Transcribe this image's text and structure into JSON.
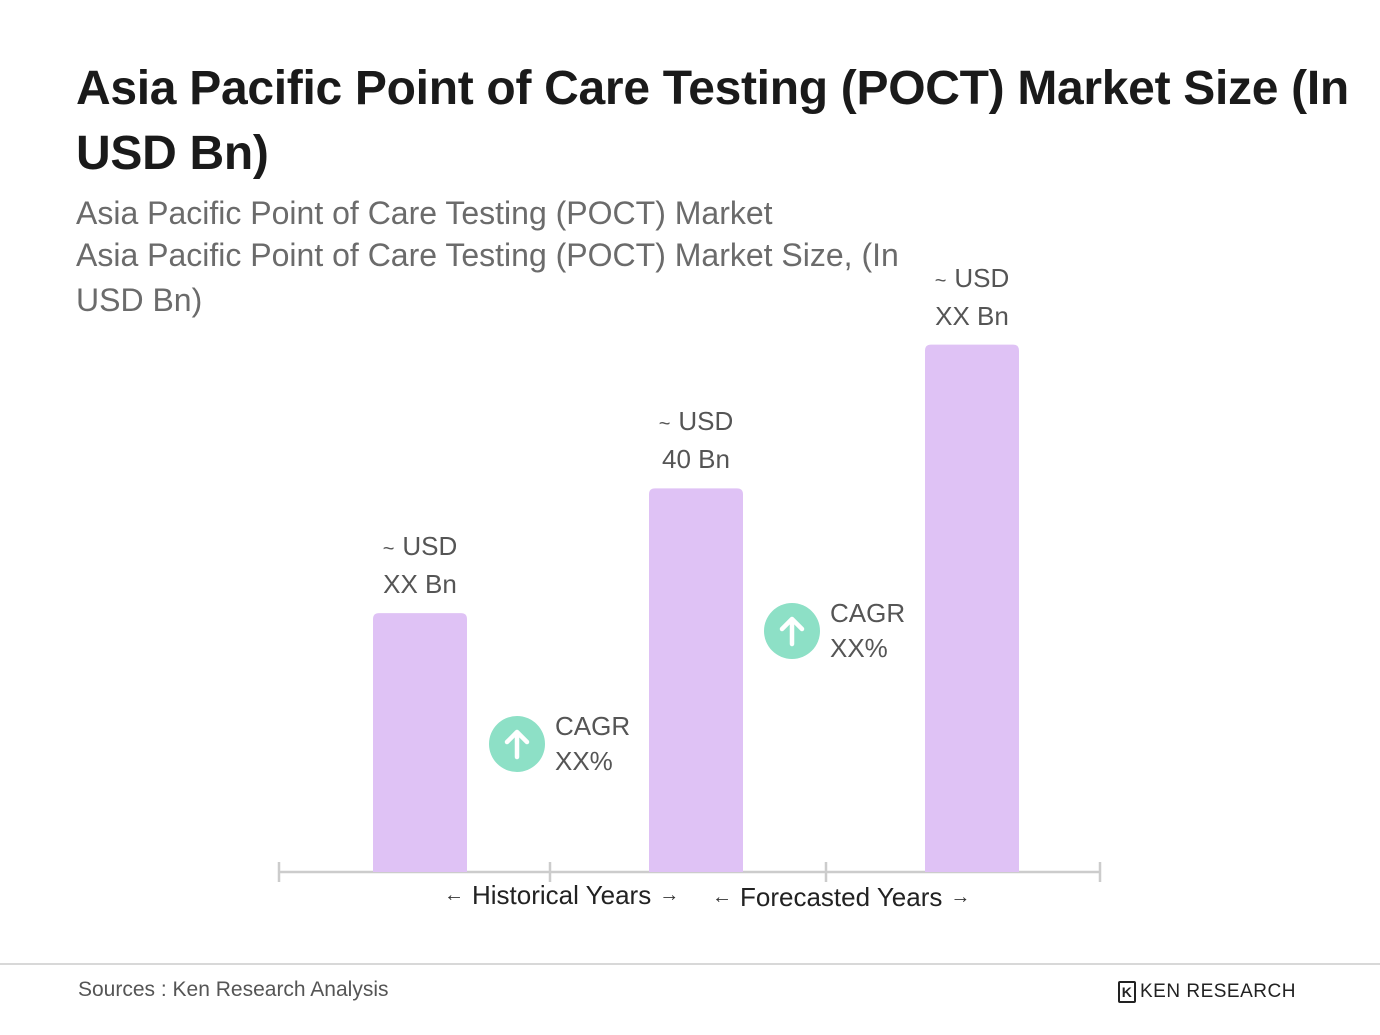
{
  "title": "Asia Pacific Point of Care Testing (POCT) Market Size (In USD Bn)",
  "subtitle_line1": "Asia Pacific Point of Care Testing (POCT) Market",
  "subtitle_line2": "Asia Pacific Point of Care Testing (POCT) Market Size, (In USD Bn)",
  "chart_data": {
    "type": "bar",
    "categories": [
      "",
      "",
      ""
    ],
    "values": [
      27,
      40,
      55
    ],
    "value_labels": [
      {
        "prefix": "~",
        "line1": "USD",
        "line2": "XX Bn"
      },
      {
        "prefix": "~",
        "line1": "USD",
        "line2": "40 Bn"
      },
      {
        "prefix": "~",
        "line1": "USD",
        "line2": "XX Bn"
      }
    ],
    "ylim": [
      0,
      60
    ],
    "grid": false,
    "bar_color": "#dfc2f5",
    "axis_color": "#cccccc",
    "annotations": [
      {
        "type": "cagr",
        "label": "CAGR",
        "value": "XX%",
        "between": [
          0,
          1
        ]
      },
      {
        "type": "cagr",
        "label": "CAGR",
        "value": "XX%",
        "between": [
          1,
          2
        ]
      }
    ],
    "periods": [
      {
        "label": "Historical Years"
      },
      {
        "label": "Forecasted Years"
      }
    ]
  },
  "cagr_icon": "arrow-up-icon",
  "cagr_color": "#8de0c6",
  "footer": {
    "source": "Sources : Ken Research Analysis",
    "brand": "KEN RESEARCH",
    "brand_icon": "ken-research-logo-icon"
  }
}
